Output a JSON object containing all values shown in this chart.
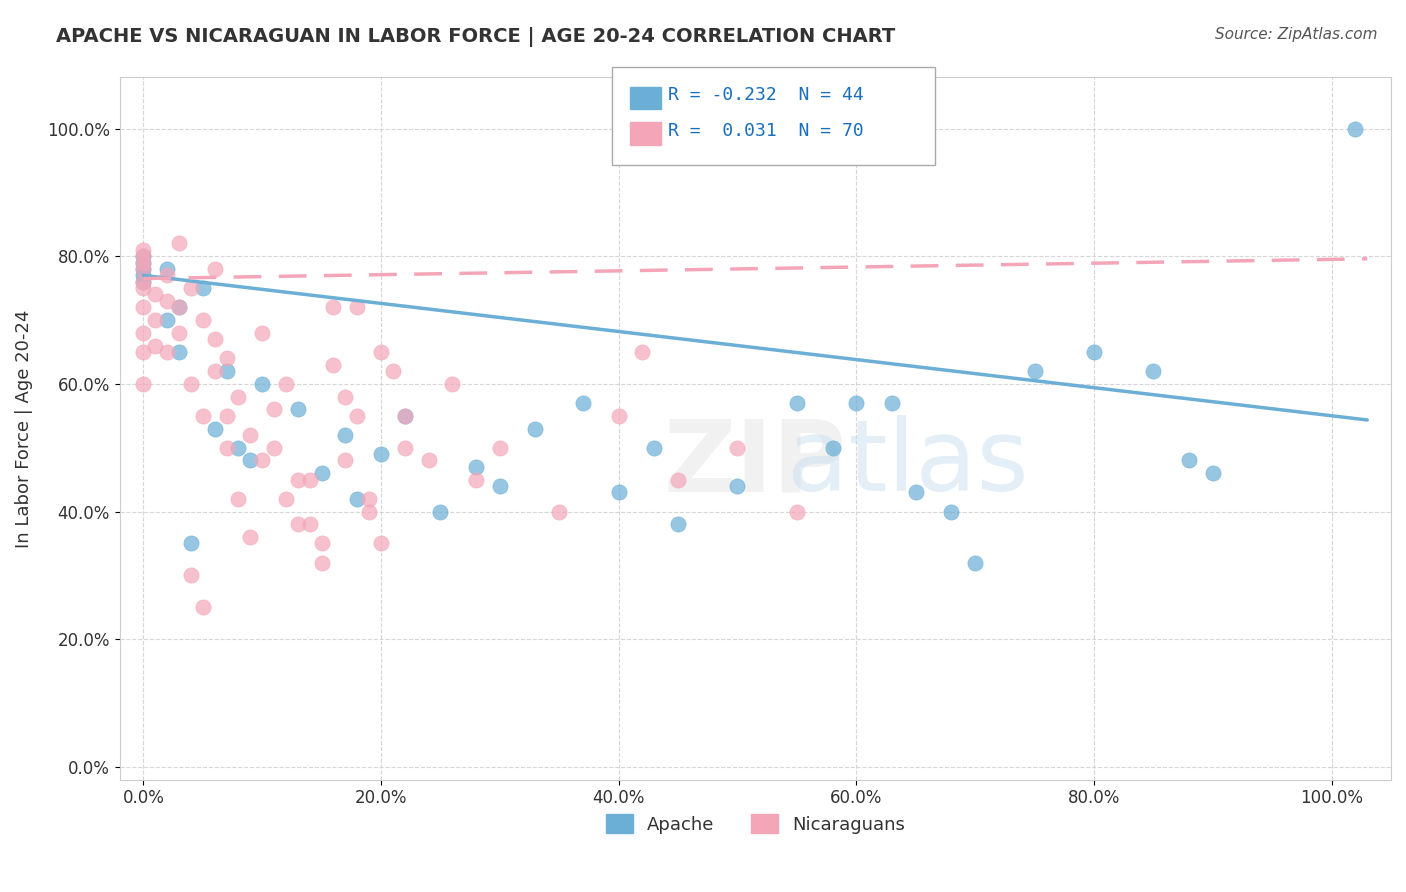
{
  "title": "APACHE VS NICARAGUAN IN LABOR FORCE | AGE 20-24 CORRELATION CHART",
  "source": "Source: ZipAtlas.com",
  "ylabel": "In Labor Force | Age 20-24",
  "xlabel": "",
  "xlim": [
    -0.02,
    1.05
  ],
  "ylim": [
    -0.02,
    1.08
  ],
  "apache_color": "#6baed6",
  "nicaraguan_color": "#f4a6b8",
  "apache_R": -0.232,
  "apache_N": 44,
  "nicaraguan_R": 0.031,
  "nicaraguan_N": 70,
  "r_color": "#1a6fbd",
  "watermark": "ZIPatlas",
  "apache_points_x": [
    0.0,
    0.0,
    0.0,
    0.0,
    0.0,
    0.02,
    0.02,
    0.03,
    0.03,
    0.04,
    0.05,
    0.06,
    0.07,
    0.08,
    0.09,
    0.1,
    0.13,
    0.15,
    0.17,
    0.18,
    0.2,
    0.22,
    0.25,
    0.28,
    0.3,
    0.33,
    0.37,
    0.4,
    0.43,
    0.45,
    0.5,
    0.55,
    0.58,
    0.6,
    0.63,
    0.65,
    0.68,
    0.7,
    0.75,
    0.8,
    0.85,
    0.88,
    0.9,
    1.02
  ],
  "apache_points_y": [
    0.76,
    0.77,
    0.78,
    0.79,
    0.8,
    0.7,
    0.78,
    0.65,
    0.72,
    0.35,
    0.75,
    0.53,
    0.62,
    0.5,
    0.48,
    0.6,
    0.56,
    0.46,
    0.52,
    0.42,
    0.49,
    0.55,
    0.4,
    0.47,
    0.44,
    0.53,
    0.57,
    0.43,
    0.5,
    0.38,
    0.44,
    0.57,
    0.5,
    0.57,
    0.57,
    0.43,
    0.4,
    0.32,
    0.62,
    0.65,
    0.62,
    0.48,
    0.46,
    1.0
  ],
  "nicaraguan_points_x": [
    0.0,
    0.0,
    0.0,
    0.0,
    0.0,
    0.0,
    0.0,
    0.0,
    0.0,
    0.0,
    0.01,
    0.01,
    0.01,
    0.02,
    0.02,
    0.02,
    0.03,
    0.03,
    0.04,
    0.04,
    0.05,
    0.05,
    0.06,
    0.06,
    0.07,
    0.07,
    0.08,
    0.09,
    0.1,
    0.11,
    0.12,
    0.13,
    0.14,
    0.15,
    0.16,
    0.17,
    0.18,
    0.19,
    0.2,
    0.22,
    0.24,
    0.26,
    0.28,
    0.3,
    0.35,
    0.4,
    0.42,
    0.45,
    0.5,
    0.55,
    0.03,
    0.04,
    0.05,
    0.06,
    0.07,
    0.08,
    0.09,
    0.1,
    0.11,
    0.12,
    0.13,
    0.14,
    0.15,
    0.16,
    0.17,
    0.18,
    0.19,
    0.2,
    0.21,
    0.22
  ],
  "nicaraguan_points_y": [
    0.75,
    0.76,
    0.78,
    0.79,
    0.8,
    0.81,
    0.72,
    0.68,
    0.65,
    0.6,
    0.74,
    0.7,
    0.66,
    0.77,
    0.73,
    0.65,
    0.72,
    0.68,
    0.75,
    0.6,
    0.7,
    0.55,
    0.67,
    0.62,
    0.64,
    0.5,
    0.58,
    0.52,
    0.48,
    0.56,
    0.42,
    0.38,
    0.45,
    0.35,
    0.63,
    0.58,
    0.72,
    0.4,
    0.65,
    0.55,
    0.48,
    0.6,
    0.45,
    0.5,
    0.4,
    0.55,
    0.65,
    0.45,
    0.5,
    0.4,
    0.82,
    0.3,
    0.25,
    0.78,
    0.55,
    0.42,
    0.36,
    0.68,
    0.5,
    0.6,
    0.45,
    0.38,
    0.32,
    0.72,
    0.48,
    0.55,
    0.42,
    0.35,
    0.62,
    0.5
  ]
}
